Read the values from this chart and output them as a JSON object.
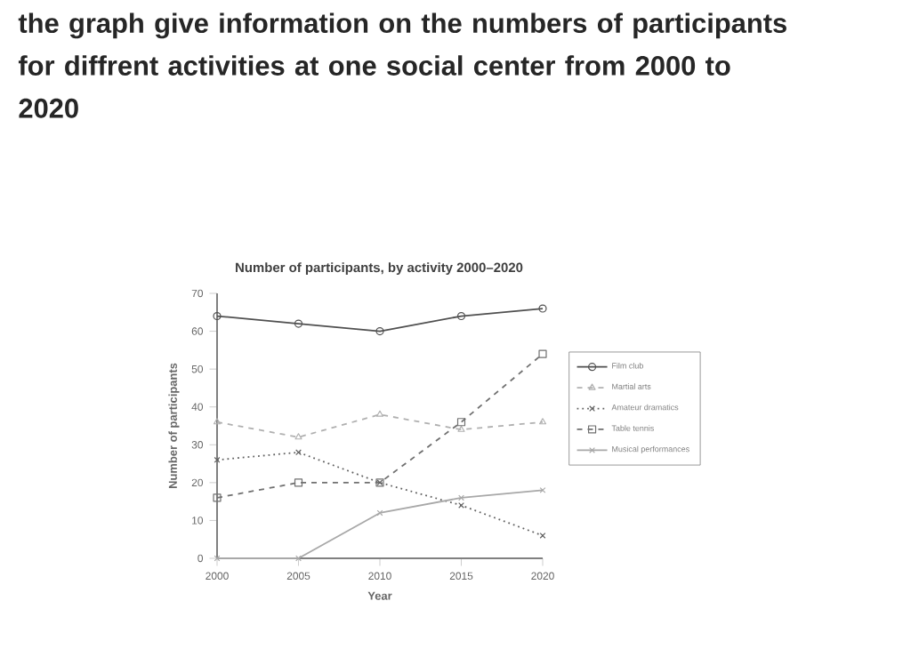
{
  "chart_data": {
    "type": "line",
    "title": "the graph give information on the numbers of participants for diffrent activities at one social center from 2000 to 2020",
    "subtitle": "Number of participants, by activity 2000–2020",
    "xlabel": "Year",
    "ylabel": "Number of participants",
    "x": [
      2000,
      2005,
      2010,
      2015,
      2020
    ],
    "xlim": [
      2000,
      2020
    ],
    "xticks": [
      2000,
      2005,
      2010,
      2015,
      2020
    ],
    "ylim": [
      0,
      70
    ],
    "yticks": [
      0,
      10,
      20,
      30,
      40,
      50,
      60,
      70
    ],
    "grid": false,
    "legend": "right",
    "series": [
      {
        "name": "Film club",
        "color": "#505050",
        "values": [
          64,
          62,
          60,
          64,
          66
        ],
        "marker": "circle",
        "line_style": "solid"
      },
      {
        "name": "Martial arts",
        "color": "#b0b0b0",
        "values": [
          36,
          32,
          38,
          34,
          36
        ],
        "marker": "triangle",
        "line_style": "dashed"
      },
      {
        "name": "Amateur dramatics",
        "color": "#606060",
        "values": [
          26,
          28,
          20,
          14,
          6
        ],
        "marker": "cross",
        "line_style": "dotted"
      },
      {
        "name": "Table tennis",
        "color": "#707070",
        "values": [
          16,
          20,
          20,
          36,
          54
        ],
        "marker": "square",
        "line_style": "dashed"
      },
      {
        "name": "Musical performances",
        "color": "#a8a8a8",
        "values": [
          0,
          0,
          12,
          16,
          18
        ],
        "marker": "cross",
        "line_style": "solid"
      }
    ]
  }
}
